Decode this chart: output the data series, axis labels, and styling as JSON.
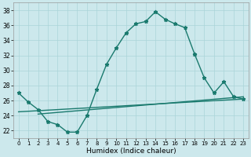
{
  "xlabel": "Humidex (Indice chaleur)",
  "background_color": "#cce8ec",
  "line_color": "#1a7a6e",
  "grid_color": "#aad4d8",
  "xlim": [
    -0.5,
    23.5
  ],
  "ylim": [
    21.0,
    39.0
  ],
  "xticks": [
    0,
    1,
    2,
    3,
    4,
    5,
    6,
    7,
    8,
    9,
    10,
    11,
    12,
    13,
    14,
    15,
    16,
    17,
    18,
    19,
    20,
    21,
    22,
    23
  ],
  "yticks": [
    22,
    24,
    26,
    28,
    30,
    32,
    34,
    36,
    38
  ],
  "curve_main": {
    "x": [
      0,
      1,
      2,
      3,
      4,
      5,
      6,
      7,
      8,
      9,
      10,
      11,
      12,
      13,
      14,
      15,
      16,
      17,
      18
    ],
    "y": [
      27.0,
      25.8,
      24.8,
      23.2,
      22.8,
      21.8,
      21.8,
      24.0,
      27.5,
      30.8,
      33.0,
      35.0,
      36.2,
      36.5,
      37.8,
      36.8,
      36.2,
      35.7,
      32.2
    ]
  },
  "curve_tail": {
    "x": [
      18,
      19,
      20,
      21,
      22,
      23
    ],
    "y": [
      32.2,
      29.0,
      27.0,
      28.5,
      26.5,
      26.2
    ]
  },
  "flat_line1": {
    "x": [
      0,
      23
    ],
    "y": [
      24.5,
      26.2
    ]
  },
  "flat_line2": {
    "x": [
      2,
      23
    ],
    "y": [
      24.2,
      26.5
    ]
  }
}
